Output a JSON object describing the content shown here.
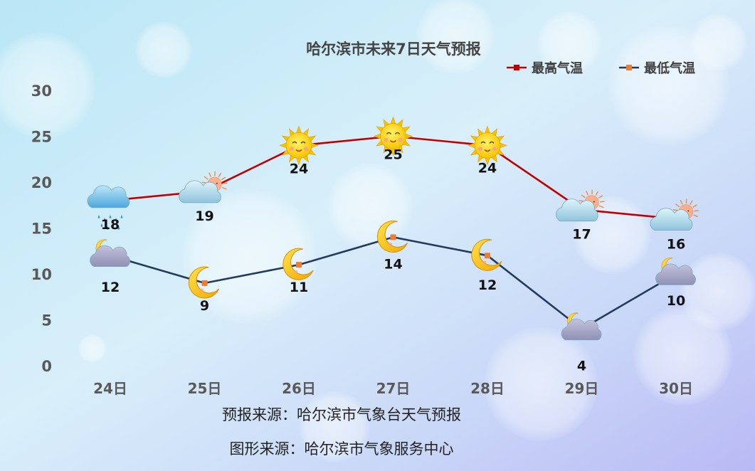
{
  "chart_data": {
    "type": "line",
    "title": "哈尔滨市未来7日天气预报",
    "categories": [
      "24日",
      "25日",
      "26日",
      "27日",
      "28日",
      "29日",
      "30日"
    ],
    "ylim": [
      0,
      30
    ],
    "yticks": [
      "0",
      "5",
      "10",
      "15",
      "20",
      "25",
      "30"
    ],
    "grid": false,
    "legend": "top-right",
    "series": [
      {
        "name": "最高气温",
        "color": "#C00000",
        "marker_color": "#C00000",
        "values": [
          18,
          19,
          24,
          25,
          24,
          17,
          16
        ],
        "labels": [
          "18",
          "19",
          "24",
          "25",
          "24",
          "17",
          "16"
        ],
        "icons": [
          "rain-cloud-icon",
          "sun-cloud-icon",
          "sun-icon",
          "sun-icon",
          "sun-icon",
          "sun-cloud-icon",
          "sun-cloud-icon"
        ]
      },
      {
        "name": "最低气温",
        "color": "#243A5E",
        "marker_color": "#ED7D31",
        "values": [
          12,
          9,
          11,
          14,
          12,
          4,
          10
        ],
        "labels": [
          "12",
          "9",
          "11",
          "14",
          "12",
          "4",
          "10"
        ],
        "icons": [
          "moon-cloud-icon",
          "moon-icon",
          "moon-icon",
          "moon-icon",
          "moon-icon",
          "moon-cloud-icon",
          "moon-cloud-icon"
        ]
      }
    ]
  },
  "footer": {
    "source_forecast": "预报来源：哈尔滨市气象台天气预报",
    "source_graphic": "图形来源：哈尔滨市气象服务中心"
  }
}
